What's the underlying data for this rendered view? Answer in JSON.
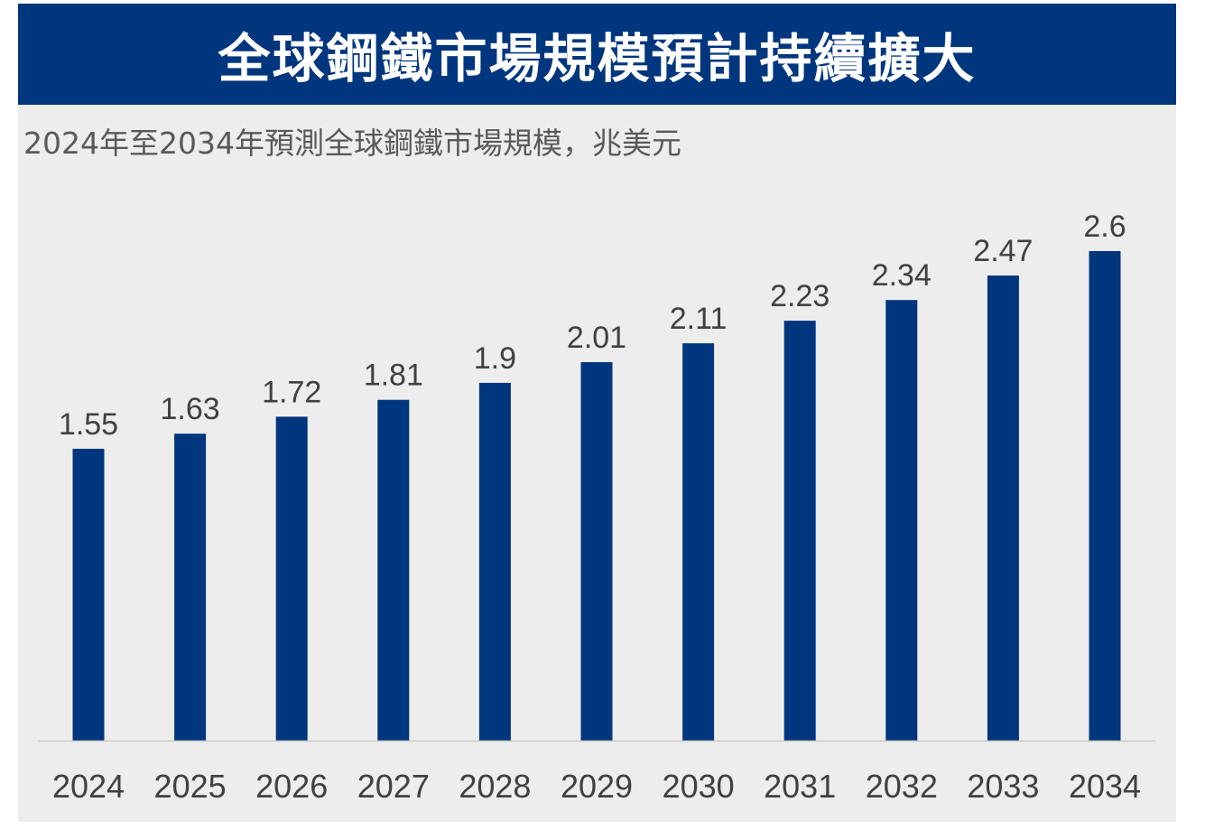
{
  "header": {
    "title": "全球鋼鐵市場規模預計持續擴大"
  },
  "subtitle": "2024年至2034年預測全球鋼鐵市場規模，兆美元",
  "colors": {
    "brand": "#00367d",
    "bar": "#00367d",
    "panel_bg": "#ededed",
    "label_text": "#404040",
    "axis_line": "#c9c9c9"
  },
  "chart_data": {
    "type": "bar",
    "title": "全球鋼鐵市場規模預計持續擴大",
    "subtitle": "2024年至2034年預測全球鋼鐵市場規模，兆美元",
    "xlabel": "",
    "ylabel": "",
    "categories": [
      "2024",
      "2025",
      "2026",
      "2027",
      "2028",
      "2029",
      "2030",
      "2031",
      "2032",
      "2033",
      "2034"
    ],
    "values": [
      1.55,
      1.63,
      1.72,
      1.81,
      1.9,
      2.01,
      2.11,
      2.23,
      2.34,
      2.47,
      2.6
    ],
    "value_labels": [
      "1.55",
      "1.63",
      "1.72",
      "1.81",
      "1.9",
      "2.01",
      "2.11",
      "2.23",
      "2.34",
      "2.47",
      "2.6"
    ],
    "ylim": [
      0,
      2.6
    ],
    "grid": false,
    "legend": "none",
    "data_labels": "above bars"
  }
}
